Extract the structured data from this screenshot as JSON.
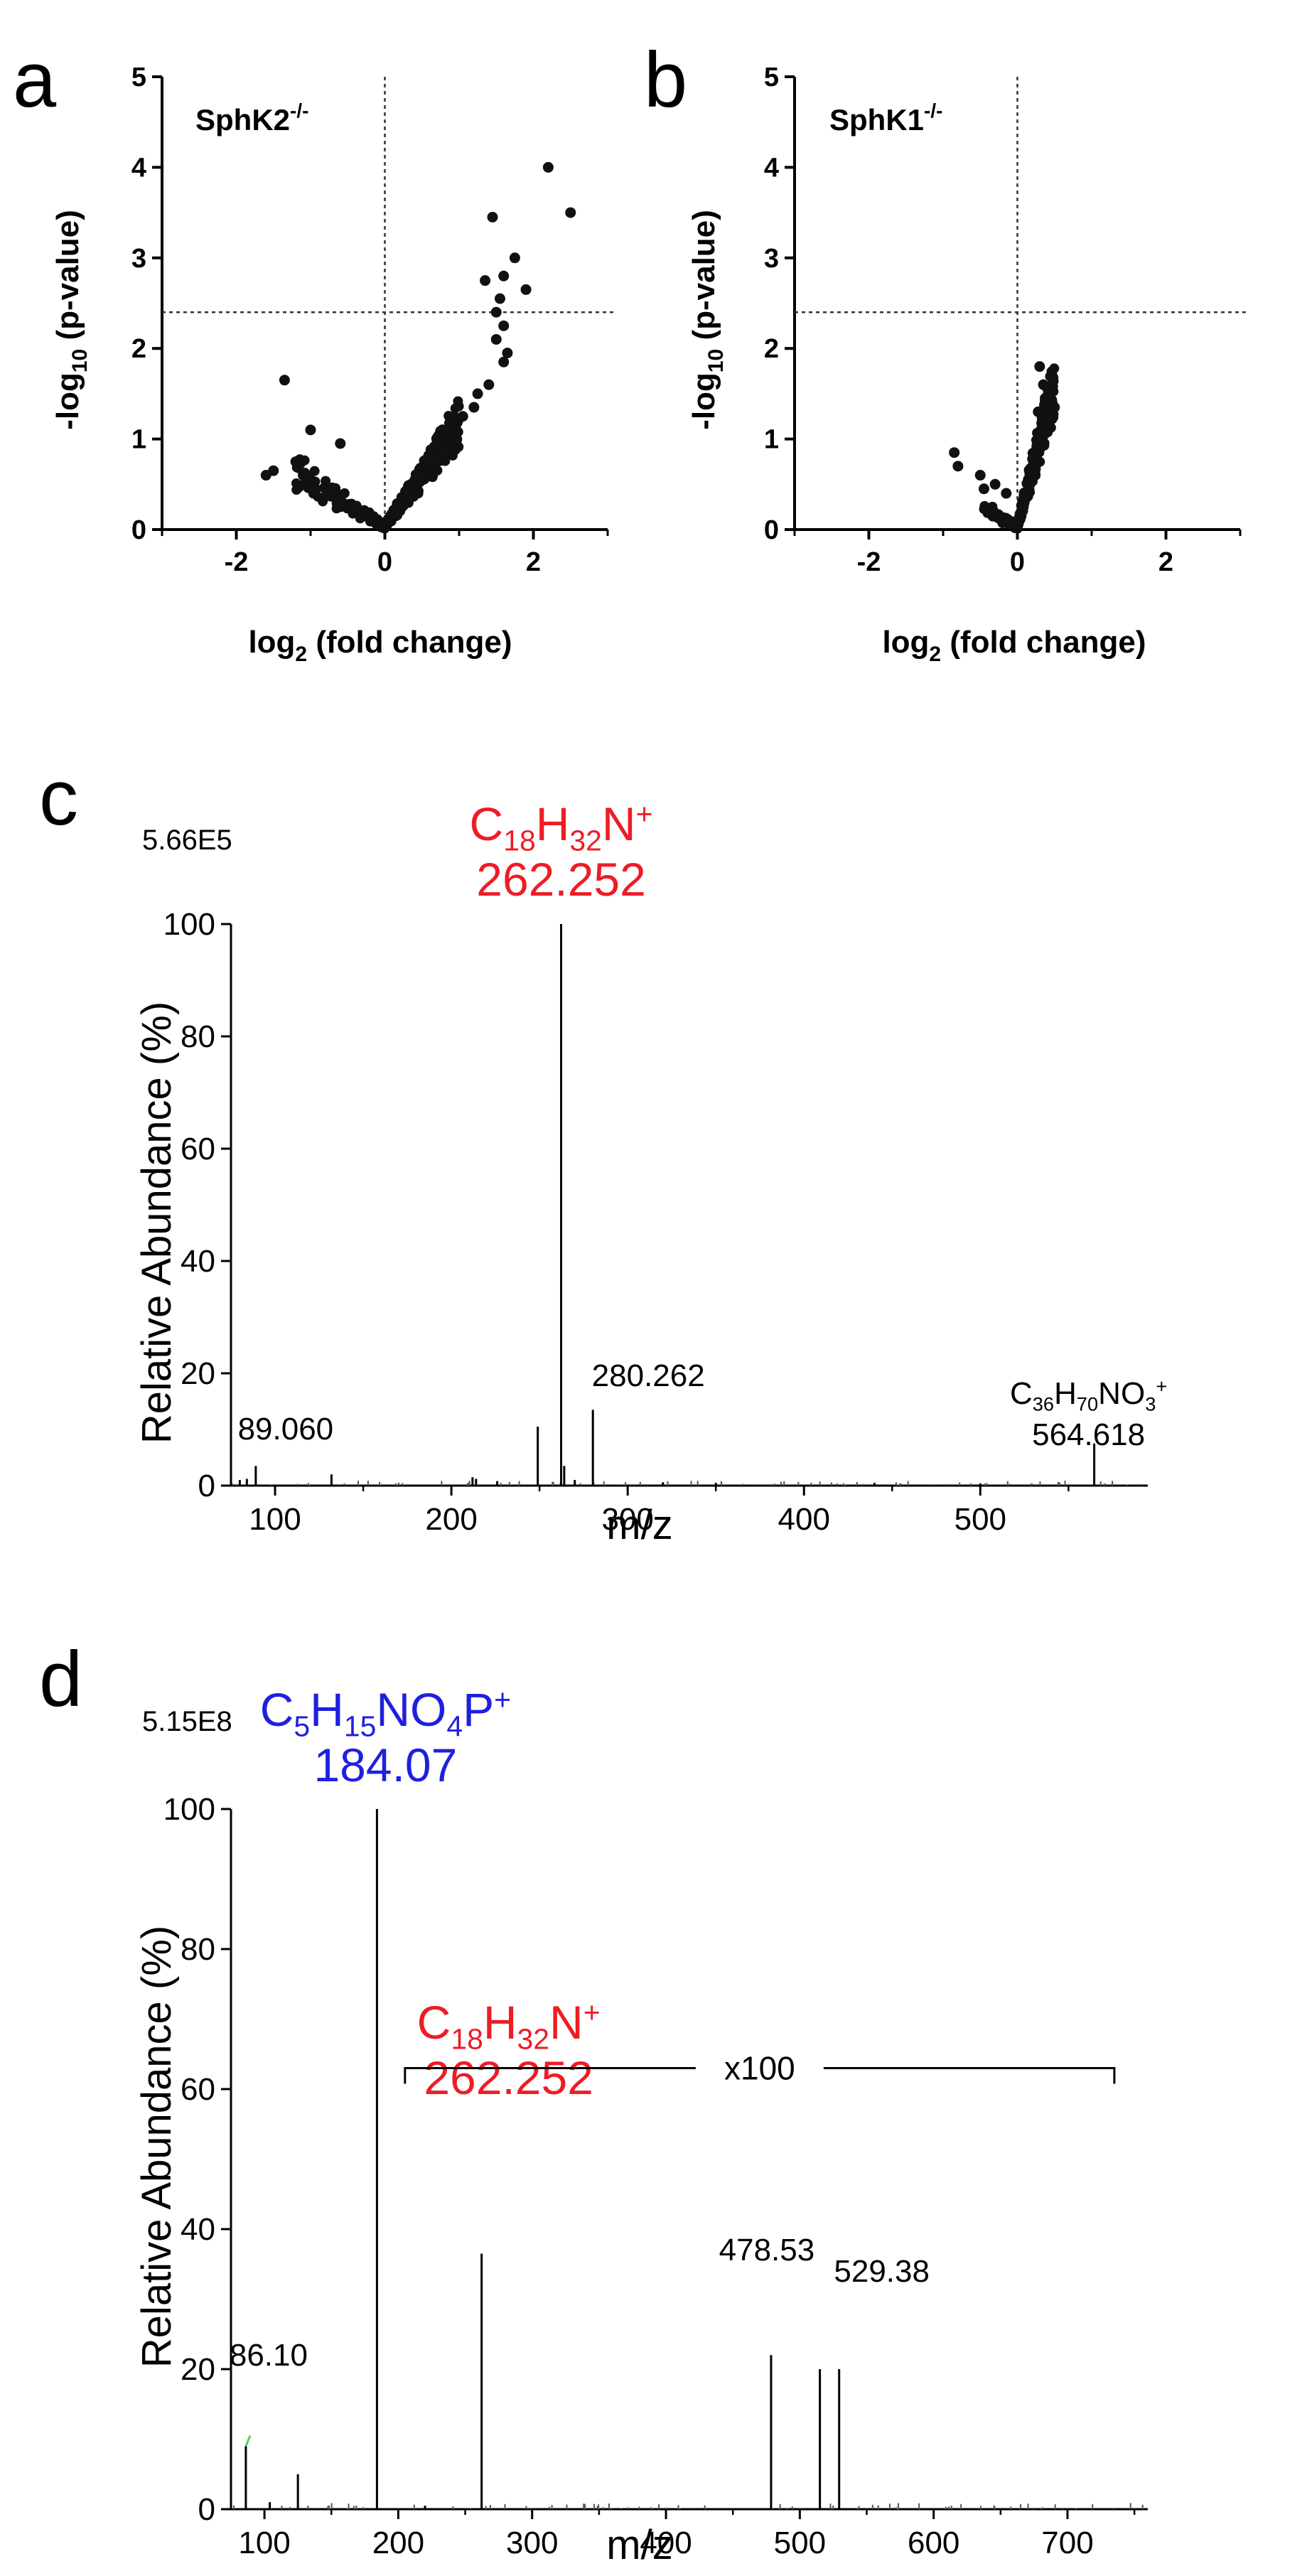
{
  "panels": {
    "a": {
      "letter": "a"
    },
    "b": {
      "letter": "b"
    },
    "c": {
      "letter": "c",
      "scale": "5.66E5"
    },
    "d": {
      "letter": "d",
      "scale": "5.15E8"
    }
  },
  "colors": {
    "red": "#ee1c25",
    "blue": "#1f1fe0",
    "points": "#111111",
    "green": "#55cc55"
  },
  "chart_data": [
    {
      "id": "a",
      "type": "scatter",
      "title_text": "SphK2",
      "title_superscript": "-/-",
      "xlabel_main": "log",
      "xlabel_sub": "2",
      "xlabel_rest": " (fold change)",
      "ylabel_main": "-log",
      "ylabel_sub": "10",
      "ylabel_rest": " (p-value)",
      "xlim": [
        -3,
        3
      ],
      "ylim": [
        0,
        5
      ],
      "xticks": [
        "-2",
        "0",
        "2"
      ],
      "xtick_values": [
        -2,
        0,
        2
      ],
      "yticks": [
        "0",
        "1",
        "2",
        "3",
        "4",
        "5"
      ],
      "threshold_y": 2.4,
      "vertical_line_x": 0,
      "highlight_points": [
        [
          2.2,
          4.0
        ],
        [
          2.5,
          3.5
        ],
        [
          1.45,
          3.45
        ],
        [
          1.75,
          3.0
        ],
        [
          1.6,
          2.8
        ],
        [
          1.35,
          2.75
        ],
        [
          1.9,
          2.65
        ],
        [
          1.55,
          2.55
        ],
        [
          1.5,
          2.4
        ],
        [
          1.6,
          2.25
        ],
        [
          1.5,
          2.1
        ],
        [
          1.65,
          1.95
        ],
        [
          1.6,
          1.85
        ],
        [
          1.4,
          1.6
        ],
        [
          1.25,
          1.5
        ],
        [
          1.2,
          1.35
        ],
        [
          1.05,
          1.25
        ],
        [
          -1.35,
          1.65
        ],
        [
          -1.0,
          1.1
        ],
        [
          -0.6,
          0.95
        ],
        [
          -1.5,
          0.65
        ],
        [
          -1.6,
          0.6
        ],
        [
          -1.2,
          0.75
        ],
        [
          -1.1,
          0.6
        ]
      ],
      "cloud": {
        "right_xmax": 1.0,
        "left_xmin": -1.2,
        "right_slope": 1.15,
        "left_slope": 0.55,
        "n": 380
      }
    },
    {
      "id": "b",
      "type": "scatter",
      "title_text": "SphK1",
      "title_superscript": "-/-",
      "xlabel_main": "log",
      "xlabel_sub": "2",
      "xlabel_rest": " (fold change)",
      "ylabel_main": "-log",
      "ylabel_sub": "10",
      "ylabel_rest": " (p-value)",
      "xlim": [
        -3,
        3
      ],
      "ylim": [
        0,
        5
      ],
      "xticks": [
        "-2",
        "0",
        "2"
      ],
      "xtick_values": [
        -2,
        0,
        2
      ],
      "yticks": [
        "0",
        "1",
        "2",
        "3",
        "4",
        "5"
      ],
      "threshold_y": 2.4,
      "vertical_line_x": 0,
      "highlight_points": [
        [
          0.3,
          1.8
        ],
        [
          0.35,
          1.6
        ],
        [
          0.4,
          1.45
        ],
        [
          0.45,
          1.4
        ],
        [
          0.5,
          1.35
        ],
        [
          0.28,
          1.3
        ],
        [
          -0.85,
          0.85
        ],
        [
          -0.8,
          0.7
        ],
        [
          -0.5,
          0.6
        ],
        [
          -0.3,
          0.5
        ],
        [
          -0.45,
          0.45
        ],
        [
          -0.15,
          0.4
        ]
      ],
      "cloud": {
        "right_xmax": 0.5,
        "left_xmin": -0.45,
        "right_slope": 3.2,
        "left_slope": 0.5,
        "n": 260
      }
    },
    {
      "id": "c",
      "type": "bar",
      "xlabel": "m/z",
      "ylabel": "Relative Abundance (%)",
      "xlim": [
        75,
        595
      ],
      "ylim": [
        0,
        100
      ],
      "xticks": [
        "100",
        "200",
        "300",
        "400",
        "500"
      ],
      "xtick_values": [
        100,
        200,
        300,
        400,
        500
      ],
      "yticks": [
        "0",
        "20",
        "40",
        "60",
        "80",
        "100"
      ],
      "peaks": [
        {
          "mz": 80,
          "intensity": 1.0
        },
        {
          "mz": 84,
          "intensity": 1.2
        },
        {
          "mz": 89.06,
          "intensity": 3.5
        },
        {
          "mz": 132,
          "intensity": 2.0
        },
        {
          "mz": 212,
          "intensity": 1.5
        },
        {
          "mz": 214,
          "intensity": 1.2
        },
        {
          "mz": 226,
          "intensity": 0.8
        },
        {
          "mz": 249,
          "intensity": 10.5
        },
        {
          "mz": 262.252,
          "intensity": 100
        },
        {
          "mz": 264,
          "intensity": 3.5
        },
        {
          "mz": 270,
          "intensity": 1.0
        },
        {
          "mz": 280.262,
          "intensity": 13.5
        },
        {
          "mz": 320,
          "intensity": 0.6
        },
        {
          "mz": 350,
          "intensity": 0.5
        },
        {
          "mz": 440,
          "intensity": 0.5
        },
        {
          "mz": 500,
          "intensity": 0.4
        },
        {
          "mz": 564.618,
          "intensity": 7.5
        }
      ],
      "annotations": [
        {
          "mz": 262.252,
          "lines": [
            "C18H32N+",
            "262.252"
          ]
        },
        {
          "mz": 280.262,
          "lines": [
            "280.262"
          ]
        },
        {
          "mz": 89.06,
          "lines": [
            "89.060"
          ]
        },
        {
          "mz": 564.618,
          "lines": [
            "C36H70NO3+",
            "564.618"
          ]
        }
      ]
    },
    {
      "id": "d",
      "type": "bar",
      "xlabel": "m/z",
      "ylabel": "Relative Abundance (%)",
      "xlim": [
        75,
        760
      ],
      "ylim": [
        0,
        100
      ],
      "xticks": [
        "100",
        "200",
        "300",
        "400",
        "500",
        "600",
        "700"
      ],
      "xtick_values": [
        100,
        200,
        300,
        400,
        500,
        600,
        700
      ],
      "yticks": [
        "0",
        "20",
        "40",
        "60",
        "80",
        "100"
      ],
      "peaks": [
        {
          "mz": 86.1,
          "intensity": 9.0
        },
        {
          "mz": 104,
          "intensity": 1.0
        },
        {
          "mz": 125,
          "intensity": 5.0
        },
        {
          "mz": 184.07,
          "intensity": 100
        },
        {
          "mz": 220,
          "intensity": 0.5
        },
        {
          "mz": 262.252,
          "intensity": 36.5
        },
        {
          "mz": 478.53,
          "intensity": 22.0
        },
        {
          "mz": 515,
          "intensity": 20.0
        },
        {
          "mz": 529.38,
          "intensity": 20.0
        }
      ],
      "annotations": [
        {
          "mz": 184.07,
          "lines": [
            "C5H15NO4P+",
            "184.07"
          ]
        },
        {
          "mz": 262.252,
          "lines": [
            "C18H32N+",
            "262.252"
          ]
        },
        {
          "mz": 86.1,
          "lines": [
            "86.10"
          ]
        },
        {
          "mz": 478.53,
          "lines": [
            "478.53"
          ]
        },
        {
          "mz": 529.38,
          "lines": [
            "529.38"
          ]
        }
      ],
      "bracket": {
        "label": "x100",
        "from_mz": 205,
        "to_mz": 735,
        "y": 63
      }
    }
  ]
}
